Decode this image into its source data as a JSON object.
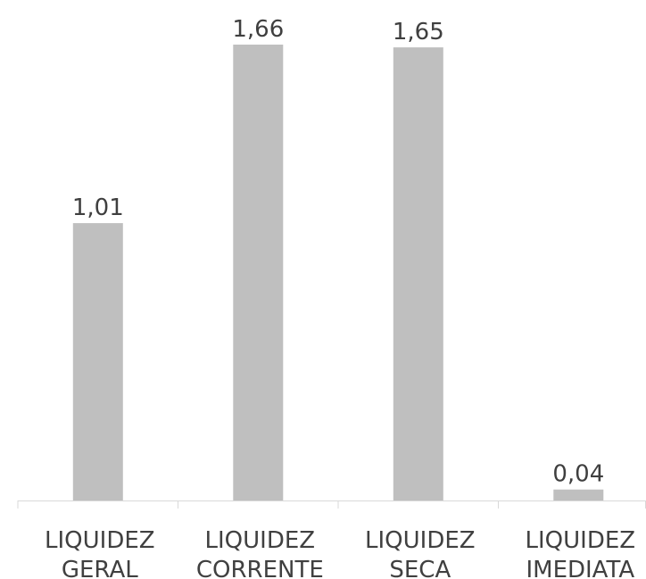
{
  "chart_data": {
    "type": "bar",
    "categories": [
      [
        "LIQUIDEZ",
        "GERAL"
      ],
      [
        "LIQUIDEZ",
        "CORRENTE"
      ],
      [
        "LIQUIDEZ",
        "SECA"
      ],
      [
        "LIQUIDEZ",
        "IMEDIATA"
      ]
    ],
    "values": [
      1.01,
      1.66,
      1.65,
      0.04
    ],
    "data_labels": [
      "1,01",
      "1,66",
      "1,65",
      "0,04"
    ],
    "bar_color": "#bfbfbf",
    "axis_color": "#d9d9d9",
    "ylim": [
      0,
      1.66
    ],
    "grid": false,
    "legend": "none"
  }
}
